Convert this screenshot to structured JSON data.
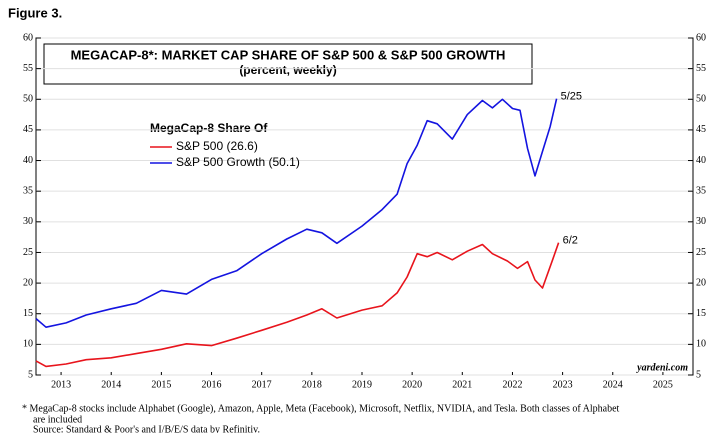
{
  "chart_data": {
    "type": "line",
    "figure_label": "Figure 3.",
    "title": "MEGACAP-8*: MARKET CAP SHARE OF S&P 500 & S&P 500 GROWTH",
    "subtitle": "(percent, weekly)",
    "legend_title": "MegaCap-8 Share Of",
    "source_mark": "yardeni.com",
    "footnotes": [
      "*  MegaCap-8 stocks include Alphabet (Google), Amazon, Apple, Meta (Facebook), Microsoft, Netflix, NVIDIA, and Tesla. Both classes of Alphabet",
      "are included",
      "Source: Standard & Poor's and I/B/E/S data by Refinitiv."
    ],
    "xlim": [
      2013,
      2026.1
    ],
    "ylim": [
      5,
      60
    ],
    "yticks": [
      5,
      10,
      15,
      20,
      25,
      30,
      35,
      40,
      45,
      50,
      55,
      60
    ],
    "xticks": [
      {
        "value": 2013.5,
        "label": "2013"
      },
      {
        "value": 2014.5,
        "label": "2014"
      },
      {
        "value": 2015.5,
        "label": "2015"
      },
      {
        "value": 2016.5,
        "label": "2016"
      },
      {
        "value": 2017.5,
        "label": "2017"
      },
      {
        "value": 2018.5,
        "label": "2018"
      },
      {
        "value": 2019.5,
        "label": "2019"
      },
      {
        "value": 2020.5,
        "label": "2020"
      },
      {
        "value": 2021.5,
        "label": "2021"
      },
      {
        "value": 2022.5,
        "label": "2022"
      },
      {
        "value": 2023.5,
        "label": "2023"
      },
      {
        "value": 2024.5,
        "label": "2024"
      },
      {
        "value": 2025.5,
        "label": "2025"
      }
    ],
    "series": [
      {
        "name": "S&P 500 (26.6)",
        "color": "#e8141c",
        "end_label": "6/2",
        "x": [
          2013,
          2013.2,
          2013.6,
          2014,
          2014.5,
          2015,
          2015.5,
          2016,
          2016.5,
          2017,
          2017.5,
          2018,
          2018.4,
          2018.7,
          2019,
          2019.5,
          2019.9,
          2020.2,
          2020.4,
          2020.6,
          2020.8,
          2021,
          2021.3,
          2021.6,
          2021.9,
          2022.1,
          2022.4,
          2022.6,
          2022.8,
          2022.95,
          2023.1,
          2023.3,
          2023.42
        ],
        "values": [
          7.3,
          6.4,
          6.8,
          7.5,
          7.8,
          8.5,
          9.2,
          10.1,
          9.8,
          11,
          12.3,
          13.6,
          14.8,
          15.8,
          14.3,
          15.6,
          16.3,
          18.4,
          21,
          24.8,
          24.3,
          25,
          23.8,
          25.2,
          26.3,
          24.8,
          23.6,
          22.4,
          23.5,
          20.5,
          19.2,
          23.8,
          26.6
        ]
      },
      {
        "name": "S&P 500 Growth (50.1)",
        "color": "#1414e0",
        "end_label": "5/25",
        "x": [
          2013,
          2013.2,
          2013.6,
          2014,
          2014.5,
          2015,
          2015.5,
          2016,
          2016.5,
          2017,
          2017.5,
          2018,
          2018.4,
          2018.7,
          2019,
          2019.5,
          2019.9,
          2020.2,
          2020.4,
          2020.6,
          2020.8,
          2021,
          2021.3,
          2021.6,
          2021.9,
          2022.1,
          2022.3,
          2022.5,
          2022.65,
          2022.8,
          2022.95,
          2023.1,
          2023.25,
          2023.38
        ],
        "values": [
          14.2,
          12.8,
          13.5,
          14.8,
          15.8,
          16.7,
          18.8,
          18.2,
          20.6,
          22,
          24.8,
          27.2,
          28.8,
          28.2,
          26.5,
          29.3,
          32,
          34.5,
          39.5,
          42.5,
          46.5,
          46,
          43.5,
          47.5,
          49.8,
          48.6,
          50,
          48.5,
          48.2,
          42,
          37.5,
          41.5,
          45.5,
          50.1
        ]
      }
    ]
  }
}
